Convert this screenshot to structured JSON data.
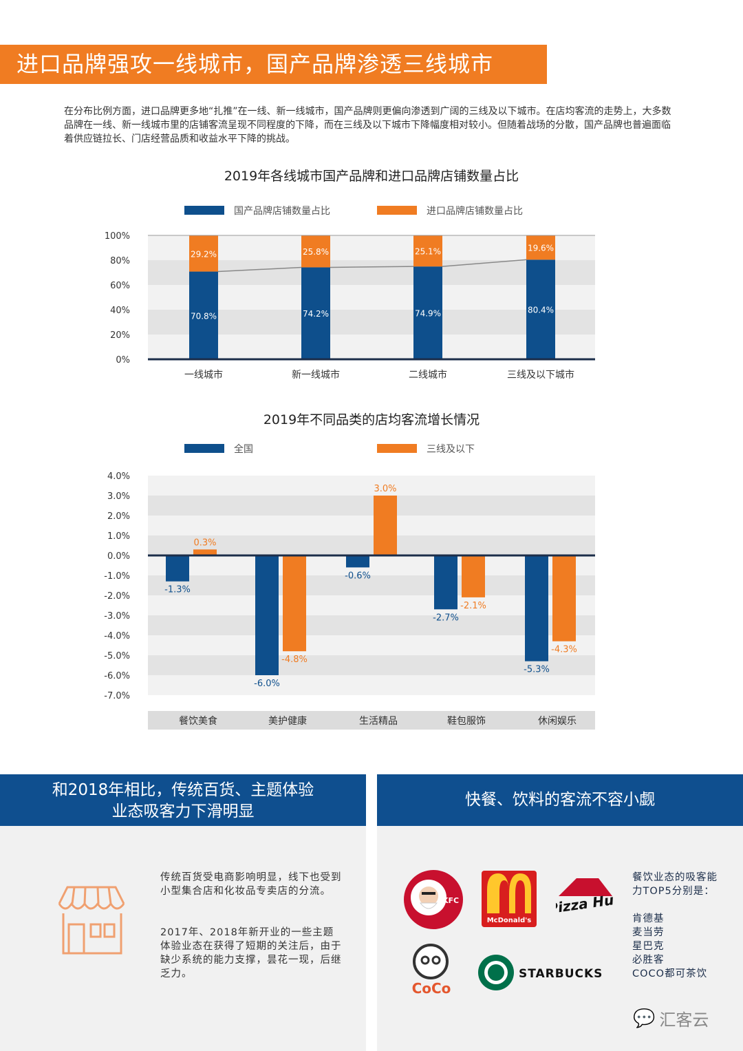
{
  "title": "进口品牌强攻一线城市，国产品牌渗透三线城市",
  "intro": "在分布比例方面，进口品牌更多地“扎推”在一线、新一线城市，国产品牌则更偏向渗透到广阔的三线及以下城市。在店均客流的走势上，大多数品牌在一线、新一线城市里的店铺客流呈现不同程度的下降，而在三线及以下城市下降幅度相对较小。但随着战场的分散，国产品牌也普遍面临着供应链拉长、门店经营品质和收益水平下降的挑战。",
  "colors": {
    "blue": "#0e4f8c",
    "orange": "#f07c22",
    "band": "#0f4f8f"
  },
  "chart_data": [
    {
      "type": "bar",
      "stacked": true,
      "title": "2019年各线城市国产品牌和进口品牌店铺数量占比",
      "categories": [
        "一线城市",
        "新一线城市",
        "二线城市",
        "三线及以下城市"
      ],
      "series": [
        {
          "name": "国产品牌店铺数量占比",
          "values": [
            70.8,
            74.2,
            74.9,
            80.4
          ],
          "labels": [
            "70.8%",
            "74.2%",
            "74.9%",
            "80.4%"
          ]
        },
        {
          "name": "进口品牌店铺数量占比",
          "values": [
            29.2,
            25.8,
            25.1,
            19.6
          ],
          "labels": [
            "29.2%",
            "25.8%",
            "25.1%",
            "19.6%"
          ]
        }
      ],
      "yticks": [
        "100%",
        "80%",
        "60%",
        "40%",
        "20%",
        "0%"
      ],
      "ylim": [
        0,
        100
      ],
      "legend": "top"
    },
    {
      "type": "bar",
      "title": "2019年不同品类的店均客流增长情况",
      "categories": [
        "餐饮美食",
        "美护健康",
        "生活精品",
        "鞋包服饰",
        "休闲娱乐"
      ],
      "series": [
        {
          "name": "全国",
          "values": [
            -1.3,
            -6.0,
            -0.6,
            -2.7,
            -5.3
          ],
          "labels": [
            "-1.3%",
            "-6.0%",
            "-0.6%",
            "-2.7%",
            "-5.3%"
          ]
        },
        {
          "name": "三线及以下",
          "values": [
            0.3,
            -4.8,
            3.0,
            -2.1,
            -4.3
          ],
          "labels": [
            "0.3%",
            "-4.8%",
            "3.0%",
            "-2.1%",
            "-4.3%"
          ]
        }
      ],
      "yticks": [
        "4.0%",
        "3.0%",
        "2.0%",
        "1.0%",
        "0.0%",
        "-1.0%",
        "-2.0%",
        "-3.0%",
        "-4.0%",
        "-5.0%",
        "-6.0%",
        "-7.0%"
      ],
      "ylim": [
        -7,
        4
      ],
      "legend": "top"
    }
  ],
  "left_section": {
    "heading_line1": "和2018年相比，传统百货、主题体验",
    "heading_line2": "业态吸客力下滑明显",
    "p1": "传统百货受电商影响明显，线下也受到小型集合店和化妆品专卖店的分流。",
    "p2": "2017年、2018年新开业的一些主题体验业态在获得了短期的关注后，由于缺少系统的能力支撑，昙花一现，后继乏力。"
  },
  "right_section": {
    "heading": "快餐、饮料的客流不容小觑",
    "intro": "餐饮业态的吸客能力TOP5分别是：",
    "brands": [
      "肯德基",
      "麦当劳",
      "星巴克",
      "必胜客",
      "COCO都可茶饮"
    ],
    "logos": {
      "kfc": "KFC",
      "mcd": "McDonald's",
      "pizza": "Pizza Hut",
      "coco": "CoCo",
      "starbucks": "STARBUCKS"
    }
  },
  "watermark": "汇客云"
}
